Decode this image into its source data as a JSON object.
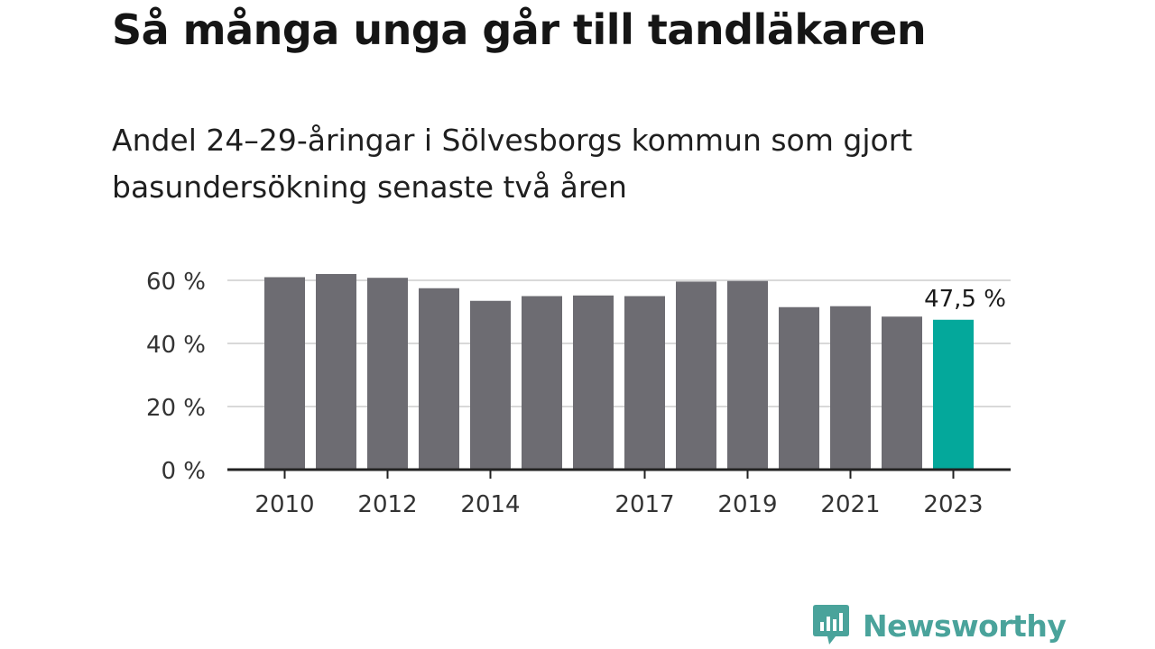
{
  "chart_data": {
    "type": "bar",
    "title": "Så många unga går till tandläkaren",
    "subtitle": "Andel 24–29-åringar i Sölvesborgs kommun som gjort basundersökning senaste två åren",
    "categories": [
      "2010",
      "2011",
      "2012",
      "2013",
      "2014",
      "2015",
      "2016",
      "2017",
      "2018",
      "2019",
      "2020",
      "2021",
      "2022",
      "2023"
    ],
    "x_tick_labels": [
      "2010",
      "",
      "2012",
      "",
      "2014",
      "",
      "",
      "2017",
      "",
      "2019",
      "",
      "2021",
      "",
      "2023"
    ],
    "values": [
      61.0,
      62.0,
      60.8,
      57.5,
      53.5,
      55.0,
      55.2,
      55.0,
      59.6,
      59.8,
      51.5,
      51.8,
      48.5,
      47.5
    ],
    "ylim": [
      0,
      60
    ],
    "y_ticks": [
      0,
      20,
      40,
      60
    ],
    "y_tick_labels": [
      "0 %",
      "20 %",
      "40 %",
      "60 %"
    ],
    "annotation": {
      "category": "2023",
      "label": "47,5 %"
    },
    "grid": true,
    "colors": {
      "bar": "#6d6c72",
      "highlight": "#04a89b",
      "grid": "#d9d9d9",
      "axis": "#222222"
    }
  },
  "logo": {
    "text": "Newsworthy",
    "icon": "newsworthy-chart-icon"
  }
}
